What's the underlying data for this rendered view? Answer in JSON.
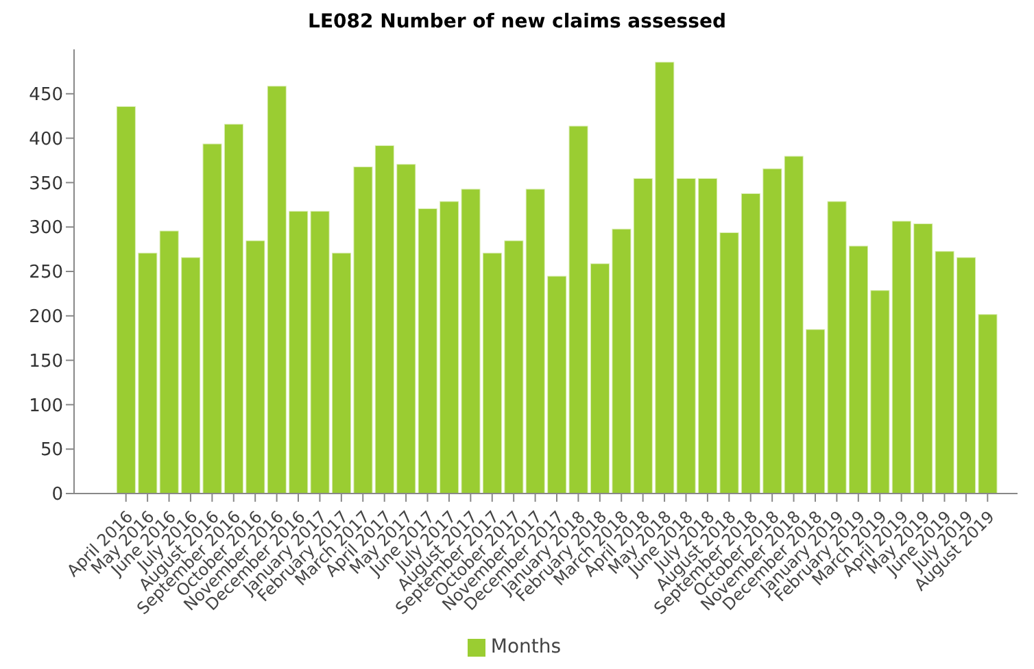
{
  "chart_data": {
    "type": "bar",
    "title": "LE082 Number of new claims assessed",
    "categories": [
      "April 2016",
      "May 2016",
      "June 2016",
      "July 2016",
      "August 2016",
      "September 2016",
      "October 2016",
      "November 2016",
      "December 2016",
      "January 2017",
      "February 2017",
      "March 2017",
      "April 2017",
      "May 2017",
      "June 2017",
      "July 2017",
      "August 2017",
      "September 2017",
      "October 2017",
      "November 2017",
      "December 2017",
      "January 2018",
      "February 2018",
      "March 2018",
      "April 2018",
      "May 2018",
      "June 2018",
      "July 2018",
      "August 2018",
      "September 2018",
      "October 2018",
      "November 2018",
      "December 2018",
      "January 2019",
      "February 2019",
      "March 2019",
      "April 2019",
      "May 2019",
      "June 2019",
      "July 2019",
      "August 2019"
    ],
    "series": [
      {
        "name": "Months",
        "color": "#9acd32",
        "values": [
          436,
          271,
          296,
          266,
          394,
          416,
          285,
          459,
          318,
          318,
          271,
          368,
          392,
          371,
          321,
          329,
          343,
          271,
          285,
          343,
          245,
          414,
          259,
          298,
          355,
          486,
          355,
          355,
          294,
          338,
          366,
          380,
          185,
          329,
          279,
          229,
          307,
          304,
          273,
          266,
          202
        ]
      }
    ],
    "ylim": [
      0,
      500
    ],
    "yticks": [
      0,
      50,
      100,
      150,
      200,
      250,
      300,
      350,
      400,
      450
    ],
    "grid": false,
    "legend": "bottom"
  }
}
